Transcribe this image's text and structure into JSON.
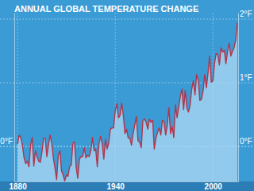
{
  "chart_data": {
    "type": "area",
    "title": "ANNUAL GLOBAL TEMPERATURE CHANGE",
    "x": [
      1880,
      1881,
      1882,
      1883,
      1884,
      1885,
      1886,
      1887,
      1888,
      1889,
      1890,
      1891,
      1892,
      1893,
      1894,
      1895,
      1896,
      1897,
      1898,
      1899,
      1900,
      1901,
      1902,
      1903,
      1904,
      1905,
      1906,
      1907,
      1908,
      1909,
      1910,
      1911,
      1912,
      1913,
      1914,
      1915,
      1916,
      1917,
      1918,
      1919,
      1920,
      1921,
      1922,
      1923,
      1924,
      1925,
      1926,
      1927,
      1928,
      1929,
      1930,
      1931,
      1932,
      1933,
      1934,
      1935,
      1936,
      1937,
      1938,
      1939,
      1940,
      1941,
      1942,
      1943,
      1944,
      1945,
      1946,
      1947,
      1948,
      1949,
      1950,
      1951,
      1952,
      1953,
      1954,
      1955,
      1956,
      1957,
      1958,
      1959,
      1960,
      1961,
      1962,
      1963,
      1964,
      1965,
      1966,
      1967,
      1968,
      1969,
      1970,
      1971,
      1972,
      1973,
      1974,
      1975,
      1976,
      1977,
      1978,
      1979,
      1980,
      1981,
      1982,
      1983,
      1984,
      1985,
      1986,
      1987,
      1988,
      1989,
      1990,
      1991,
      1992,
      1993,
      1994,
      1995,
      1996,
      1997,
      1998,
      1999,
      2000,
      2001,
      2002,
      2003,
      2004,
      2005,
      2006,
      2007,
      2008,
      2009,
      2010,
      2011,
      2012,
      2013,
      2014,
      2015
    ],
    "values": [
      0.04,
      0.18,
      0.14,
      0.02,
      -0.18,
      -0.27,
      -0.23,
      -0.32,
      0.02,
      0.14,
      -0.31,
      -0.07,
      -0.16,
      -0.23,
      -0.25,
      -0.09,
      0.13,
      0.13,
      -0.16,
      0.02,
      0.18,
      0.05,
      -0.18,
      -0.34,
      -0.52,
      -0.14,
      -0.07,
      -0.38,
      -0.45,
      -0.54,
      -0.45,
      -0.47,
      -0.32,
      -0.29,
      0.05,
      0.07,
      -0.32,
      -0.5,
      -0.2,
      -0.16,
      -0.16,
      -0.02,
      -0.18,
      -0.14,
      -0.16,
      -0.07,
      0.14,
      -0.07,
      -0.04,
      -0.32,
      0.04,
      0.16,
      0.04,
      -0.2,
      0.11,
      -0.04,
      0.05,
      0.27,
      0.29,
      0.29,
      0.56,
      0.67,
      0.45,
      0.49,
      0.68,
      0.49,
      0.2,
      0.27,
      0.13,
      0.13,
      0.02,
      0.2,
      0.34,
      0.47,
      0.09,
      0.07,
      -0.02,
      0.41,
      0.43,
      0.38,
      0.27,
      0.43,
      0.38,
      0.41,
      -0.04,
      0.13,
      0.22,
      0.29,
      0.18,
      0.41,
      0.38,
      0.18,
      0.34,
      0.61,
      0.2,
      0.31,
      0.14,
      0.65,
      0.45,
      0.61,
      0.79,
      0.9,
      0.58,
      0.88,
      0.61,
      0.54,
      0.65,
      0.9,
      1.03,
      0.81,
      1.13,
      1.04,
      0.72,
      0.74,
      0.88,
      1.13,
      0.92,
      1.15,
      1.42,
      1.01,
      1.03,
      1.3,
      1.46,
      1.44,
      1.28,
      1.55,
      1.48,
      1.51,
      1.3,
      1.49,
      1.62,
      1.42,
      1.49,
      1.55,
      1.67,
      1.94
    ],
    "color": "#b3354a",
    "xlim": [
      1878,
      2015.5
    ],
    "ylim": [
      -0.55,
      2.1
    ],
    "xticks": [
      1880,
      1940,
      2000
    ],
    "yticks": [
      {
        "value": 0,
        "label": "0°F"
      }
    ],
    "y2lim": [
      -0.55,
      2.1
    ],
    "y2ticks": [
      {
        "value": 0,
        "label": "0°F"
      },
      {
        "value": 1,
        "label": "1°F"
      },
      {
        "value": 2,
        "label": "2°F"
      }
    ],
    "grid": true
  }
}
